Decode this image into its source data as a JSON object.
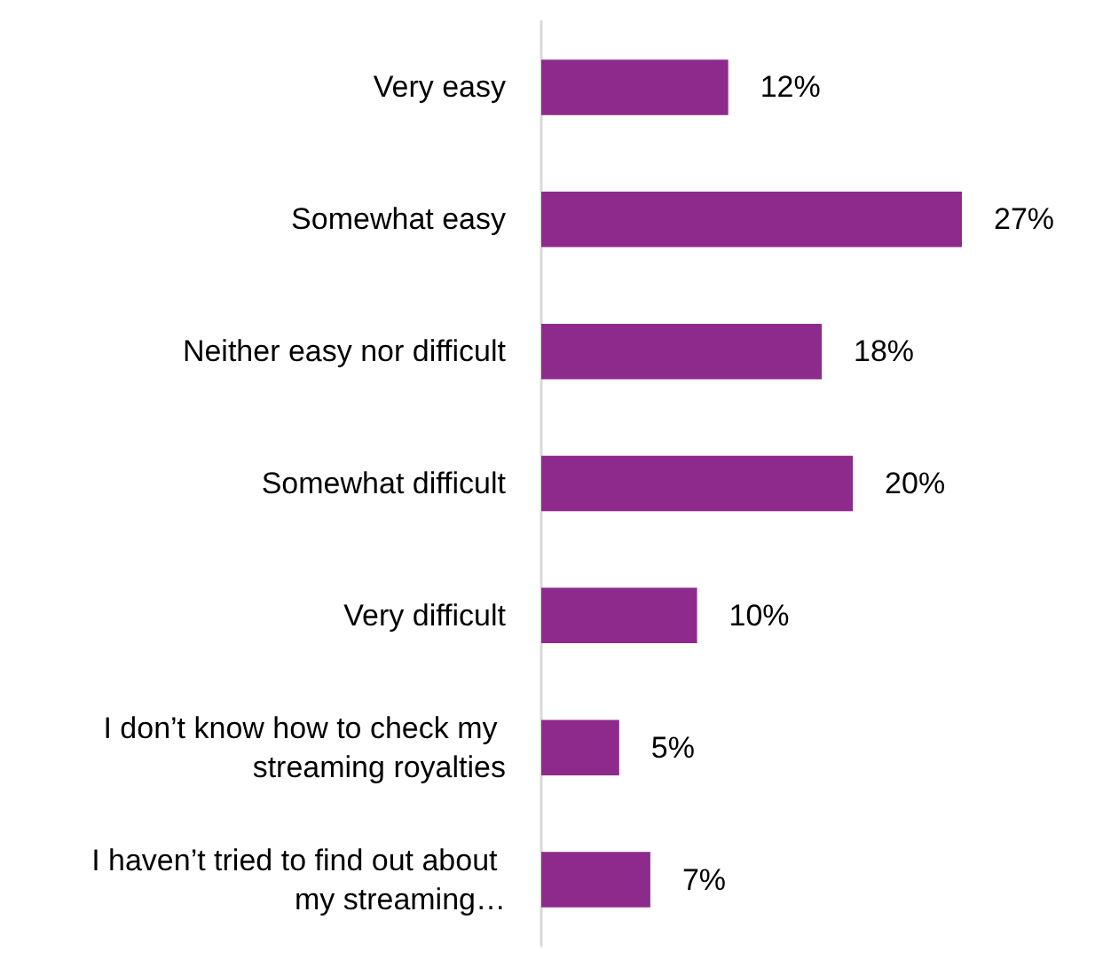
{
  "chart_data": {
    "type": "bar",
    "orientation": "horizontal",
    "categories": [
      "Very easy",
      "Somewhat easy",
      "Neither easy nor difficult",
      "Somewhat difficult",
      "Very difficult",
      "I don’t know how to check my streaming royalties",
      "I haven’t tried to find out about my streaming…"
    ],
    "values": [
      12,
      27,
      18,
      20,
      10,
      5,
      7
    ],
    "value_labels": [
      "12%",
      "27%",
      "18%",
      "20%",
      "10%",
      "5%",
      "7%"
    ],
    "color": "#8e2a8c"
  }
}
